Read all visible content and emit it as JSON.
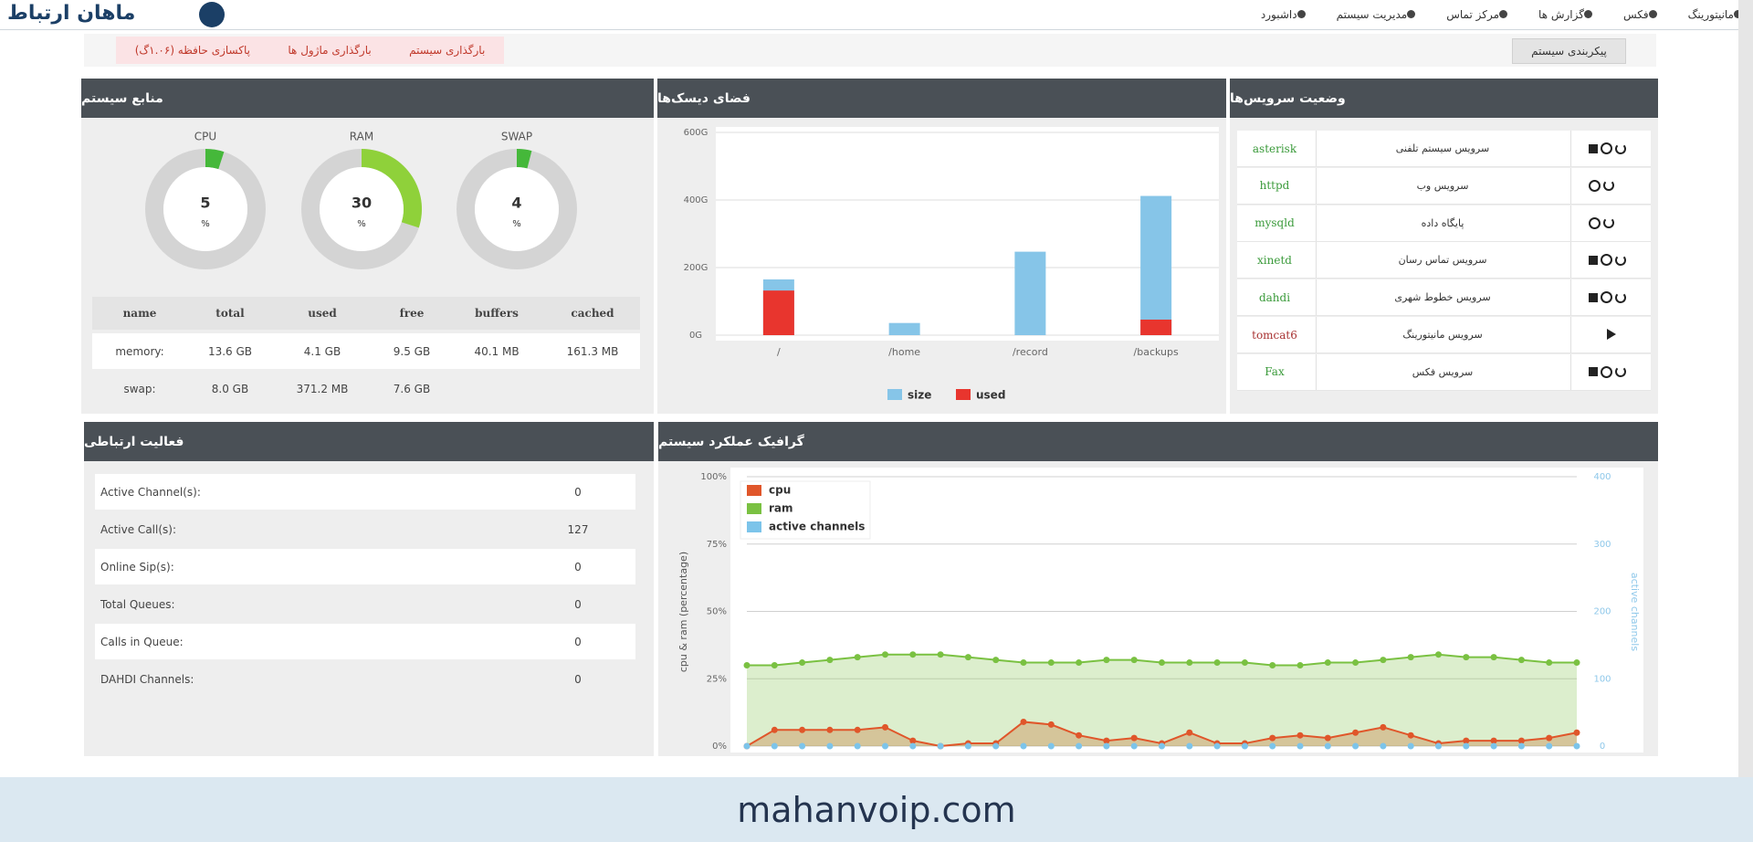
{
  "nav": {
    "logo": "ماهان ارتباط",
    "items": [
      "داشبورد",
      "مدیریت سیستم",
      "مرکز تماس",
      "گزارش ها",
      "فکس",
      "مانیتورینگ"
    ]
  },
  "toolbar": {
    "actions": [
      "پاکسازی حافظه (۱.۰۶گ)",
      "بارگذاری ماژول ها",
      "بارگذاری سیستم"
    ],
    "config_button": "پیکربندی سیستم"
  },
  "resources": {
    "title": "منابع سیستم",
    "gauge_range": [
      0,
      100
    ],
    "gauges": [
      {
        "label": "CPU",
        "value": 5,
        "unit": "%",
        "color": "#45b83a"
      },
      {
        "label": "RAM",
        "value": 30,
        "unit": "%",
        "color": "#8fd13a"
      },
      {
        "label": "SWAP",
        "value": 4,
        "unit": "%",
        "color": "#45b83a"
      }
    ],
    "table": {
      "header": [
        "name",
        "total",
        "used",
        "free",
        "buffers",
        "cached"
      ],
      "rows": [
        [
          "memory:",
          "13.6 GB",
          "4.1 GB",
          "9.5 GB",
          "40.1 MB",
          "161.3 MB"
        ],
        [
          "swap:",
          "8.0 GB",
          "371.2 MB",
          "7.6 GB"
        ]
      ]
    }
  },
  "disk": {
    "title": "فضای دیسک‌ها",
    "chart": {
      "type": "bar",
      "categories": [
        "/",
        "/home",
        "/record",
        "/backups"
      ],
      "series": [
        {
          "name": "size",
          "color": "#86c5e8",
          "values": [
            165,
            36,
            247,
            412
          ]
        },
        {
          "name": "used",
          "color": "#e8352e",
          "values": [
            132,
            0,
            0,
            46
          ]
        }
      ],
      "ylim": [
        0,
        600
      ],
      "yticks": [
        {
          "value": 0,
          "label": "0G"
        },
        {
          "value": 200,
          "label": "200G"
        },
        {
          "value": 400,
          "label": "400G"
        },
        {
          "value": 600,
          "label": "600G"
        }
      ],
      "grid": true
    }
  },
  "services": {
    "title": "وضعیت سرویس‌ها",
    "rows": [
      {
        "name": "asterisk",
        "description": "سرویس سیستم تلفنی",
        "color": "#3a9a3a"
      },
      {
        "name": "httpd",
        "description": "سرویس وب",
        "color": "#3a9a3a"
      },
      {
        "name": "mysqld",
        "description": "پایگاه داده",
        "color": "#3a9a3a"
      },
      {
        "name": "xinetd",
        "description": "سرویس تماس رسان",
        "color": "#3a9a3a"
      },
      {
        "name": "dahdi",
        "description": "سرویس خطوط شهری",
        "color": "#3a9a3a"
      },
      {
        "name": "tomcat6",
        "description": "سرویس مانیتورینگ",
        "color": "#a83232"
      },
      {
        "name": "Fax",
        "description": "سرویس فکس",
        "color": "#3a9a3a"
      }
    ]
  },
  "activity": {
    "title": "فعالیت ارتباطی",
    "rows": [
      {
        "label": "Active Channel(s):",
        "value": 0
      },
      {
        "label": "Active Call(s):",
        "value": 127
      },
      {
        "label": "Online Sip(s):",
        "value": 0
      },
      {
        "label": "Total Queues:",
        "value": 0
      },
      {
        "label": "Calls in Queue:",
        "value": 0
      },
      {
        "label": "DAHDI Channels:",
        "value": 0
      }
    ]
  },
  "performance": {
    "title": "گرافیک عملکرد سیستم",
    "chart": {
      "type": "line",
      "ylabel": "cpu & ram (percentage)",
      "y2label": "active channels",
      "ylim": [
        0,
        100
      ],
      "yticks": [
        {
          "value": 0,
          "label": "0%"
        },
        {
          "value": 25,
          "label": "25%"
        },
        {
          "value": 50,
          "label": "50%"
        },
        {
          "value": 75,
          "label": "75%"
        },
        {
          "value": 100,
          "label": "100%"
        }
      ],
      "y2lim": [
        0,
        400
      ],
      "y2ticks": [
        0,
        100,
        200,
        300,
        400
      ],
      "grid": true,
      "legend": "top-left",
      "series": [
        {
          "name": "cpu",
          "color": "#e0562a",
          "values": [
            0,
            6,
            6,
            6,
            6,
            7,
            2,
            0,
            1,
            1,
            9,
            8,
            4,
            2,
            3,
            1,
            5,
            1,
            1,
            3,
            4,
            3,
            5,
            7,
            4,
            1,
            2,
            2,
            2,
            3,
            5
          ]
        },
        {
          "name": "ram",
          "color": "#7ac142",
          "values": [
            30,
            30,
            31,
            32,
            33,
            34,
            34,
            34,
            33,
            32,
            31,
            31,
            31,
            32,
            32,
            31,
            31,
            31,
            31,
            30,
            30,
            31,
            31,
            32,
            33,
            34,
            33,
            33,
            32,
            31,
            31
          ]
        },
        {
          "name": "active channels",
          "color": "#7cc4ea",
          "axis": "y2",
          "values": [
            0,
            0,
            0,
            0,
            0,
            0,
            0,
            0,
            0,
            0,
            0,
            0,
            0,
            0,
            0,
            0,
            0,
            0,
            0,
            0,
            0,
            0,
            0,
            0,
            0,
            0,
            0,
            0,
            0,
            0,
            0
          ]
        }
      ]
    }
  },
  "footer": "mahanvoip.com"
}
